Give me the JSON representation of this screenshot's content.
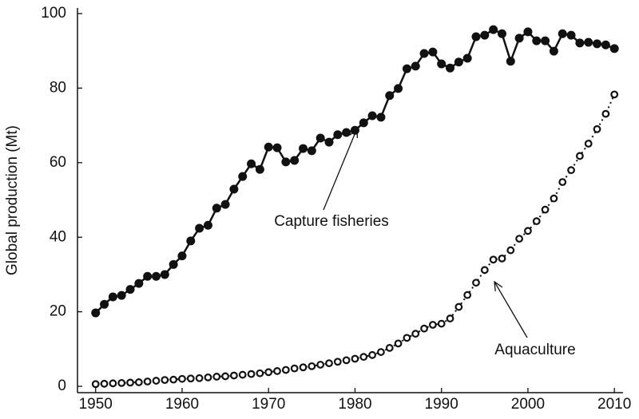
{
  "chart_data": {
    "type": "line",
    "y_label": "Global production (Mt)",
    "x": [
      1950,
      1951,
      1952,
      1953,
      1954,
      1955,
      1956,
      1957,
      1958,
      1959,
      1960,
      1961,
      1962,
      1963,
      1964,
      1965,
      1966,
      1967,
      1968,
      1969,
      1970,
      1971,
      1972,
      1973,
      1974,
      1975,
      1976,
      1977,
      1978,
      1979,
      1980,
      1981,
      1982,
      1983,
      1984,
      1985,
      1986,
      1987,
      1988,
      1989,
      1990,
      1991,
      1992,
      1993,
      1994,
      1995,
      1996,
      1997,
      1998,
      1999,
      2000,
      2001,
      2002,
      2003,
      2004,
      2005,
      2006,
      2007,
      2008,
      2009,
      2010
    ],
    "series": [
      {
        "name": "Capture fisheries",
        "color": "#111111",
        "marker": "filled",
        "line": "solid",
        "values": [
          19.7,
          22,
          24,
          24.4,
          26,
          27.6,
          29.5,
          29.5,
          30,
          32.7,
          35,
          39,
          42.4,
          43.2,
          47.8,
          48.8,
          52.9,
          56.3,
          59.7,
          58.2,
          64.2,
          64,
          60.2,
          60.6,
          63.8,
          63.2,
          66.6,
          65.5,
          67.5,
          68.1,
          68.7,
          70.7,
          72.6,
          72.2,
          78,
          79.9,
          85.2,
          85.9,
          89.3,
          89.7,
          86.5,
          85.4,
          87,
          88,
          93.8,
          94.2,
          95.7,
          94.6,
          87.2,
          93.4,
          95.1,
          92.7,
          92.7,
          89.9,
          94.6,
          94.2,
          92.1,
          92.3,
          91.9,
          91.6,
          90.6
        ]
      },
      {
        "name": "Aquaculture",
        "color": "#111111",
        "marker": "open",
        "line": "dotted",
        "values": [
          0.6,
          0.7,
          0.8,
          0.9,
          1.0,
          1.1,
          1.3,
          1.5,
          1.7,
          1.8,
          2.0,
          2.1,
          2.2,
          2.4,
          2.6,
          2.7,
          2.9,
          3.1,
          3.3,
          3.5,
          3.8,
          4.1,
          4.4,
          4.8,
          5.1,
          5.4,
          5.8,
          6.2,
          6.6,
          7.0,
          7.4,
          7.9,
          8.4,
          9.2,
          10.3,
          11.5,
          13.0,
          14.1,
          15.5,
          16.5,
          16.8,
          18.2,
          21.3,
          24.5,
          27.8,
          31.2,
          34.0,
          34.3,
          36.5,
          39.6,
          41.7,
          44.3,
          47.4,
          50.4,
          54.8,
          58.0,
          61.8,
          65.1,
          69.0,
          73.1,
          78.3
        ]
      }
    ],
    "xlim": [
      1947.9,
      2011
    ],
    "ylim": [
      -1.7,
      100
    ],
    "xticks": [
      1950,
      1960,
      1970,
      1980,
      1990,
      2000,
      2010
    ],
    "yticks": [
      0,
      20,
      40,
      60,
      80,
      100
    ],
    "grid": false,
    "legend": false
  }
}
